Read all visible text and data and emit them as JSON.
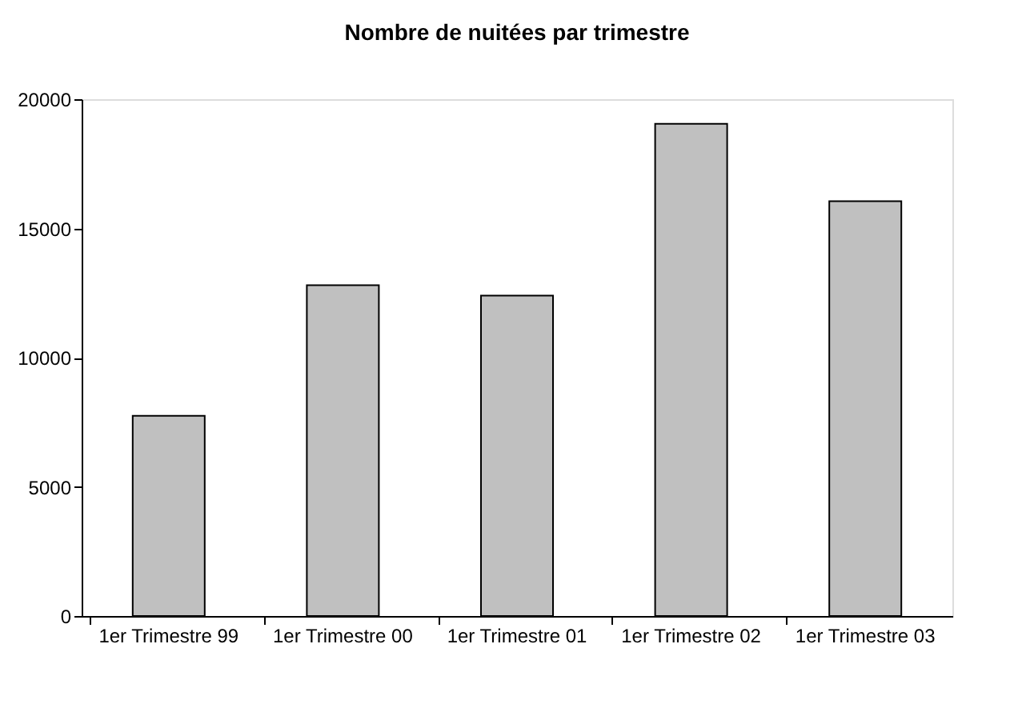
{
  "chart_data": {
    "type": "bar",
    "title": "Nombre de nuitées par trimestre",
    "categories": [
      "1er Trimestre 99",
      "1er Trimestre 00",
      "1er Trimestre 01",
      "1er Trimestre 02",
      "1er Trimestre 03"
    ],
    "values": [
      7750,
      12800,
      12400,
      19050,
      16050
    ],
    "color": "#c0c0c0",
    "ylim": [
      0,
      20000
    ],
    "yticks": [
      0,
      5000,
      10000,
      15000,
      20000
    ],
    "grid": false,
    "legend": false
  }
}
